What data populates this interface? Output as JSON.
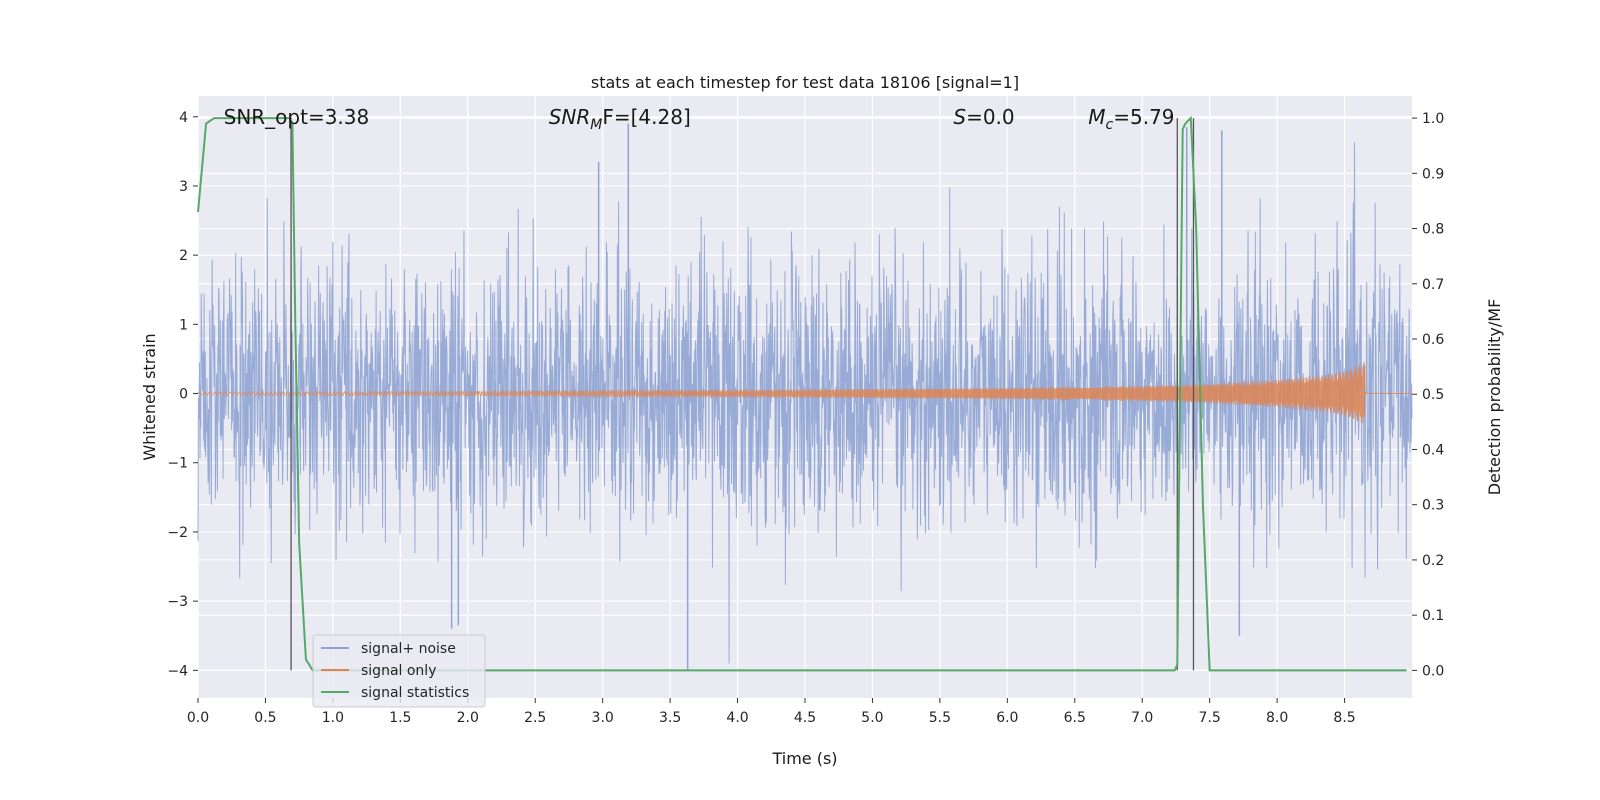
{
  "chart_data": {
    "type": "line",
    "title": "stats at each timestep for test data 18106 [signal=1]",
    "xlabel": "Time (s)",
    "ylabel": "Whitened strain",
    "y2label": "Detection probability/MF",
    "xlim": [
      0.0,
      9.0
    ],
    "ylim": [
      -4.4,
      4.3
    ],
    "y2lim": [
      -0.05,
      1.04
    ],
    "xticks": [
      0.0,
      0.5,
      1.0,
      1.5,
      2.0,
      2.5,
      3.0,
      3.5,
      4.0,
      4.5,
      5.0,
      5.5,
      6.0,
      6.5,
      7.0,
      7.5,
      8.0,
      8.5
    ],
    "xtick_labels": [
      "0.0",
      "0.5",
      "1.0",
      "1.5",
      "2.0",
      "2.5",
      "3.0",
      "3.5",
      "4.0",
      "4.5",
      "5.0",
      "5.5",
      "6.0",
      "6.5",
      "7.0",
      "7.5",
      "8.0",
      "8.5"
    ],
    "yticks": [
      4,
      3,
      2,
      1,
      0,
      -1,
      -2,
      -3,
      -4
    ],
    "ytick_labels": [
      "4",
      "3",
      "2",
      "1",
      "0",
      "−1",
      "−2",
      "−3",
      "−4"
    ],
    "y2ticks": [
      1.0,
      0.9,
      0.8,
      0.7,
      0.6,
      0.5,
      0.4,
      0.3,
      0.2,
      0.1,
      0.0
    ],
    "y2tick_labels": [
      "1.0",
      "0.9",
      "0.8",
      "0.7",
      "0.6",
      "0.5",
      "0.4",
      "0.3",
      "0.2",
      "0.1",
      "0.0"
    ],
    "annotations": [
      {
        "id": "snr-opt",
        "text": "SNR_opt=3.38",
        "x": 0.19,
        "y": 4.0
      },
      {
        "id": "snr-mf",
        "text_main": "SNR",
        "text_sub": "M",
        "text_rest": "F=[4.28]",
        "x": 2.6,
        "y": 4.0
      },
      {
        "id": "s-stat",
        "text_main": "S",
        "text_rest": "=0.0",
        "x": 5.6,
        "y": 4.0
      },
      {
        "id": "mc",
        "text_main": "M",
        "text_sub": "c",
        "text_rest": "=5.79",
        "x": 6.6,
        "y": 4.0
      }
    ],
    "vertical_lines": [
      0.69,
      7.26,
      7.38
    ],
    "legend": {
      "position": "lower-left",
      "entries": [
        {
          "label": "signal+ noise",
          "color": "#8fa4d3"
        },
        {
          "label": "signal only",
          "color": "#dd8452"
        },
        {
          "label": "signal statistics",
          "color": "#55a868"
        }
      ]
    },
    "series": [
      {
        "name": "signal+ noise",
        "axis": "left",
        "color": "#8fa4d3",
        "description_values": "whitened noise, roughly Gaussian with sigma 1, range about -4 to 4 across 0 to 9 s",
        "notable_peaks": [
          [
            3.19,
            3.9
          ],
          [
            2.97,
            3.35
          ],
          [
            7.33,
            3.85
          ],
          [
            7.59,
            3.8
          ],
          [
            3.63,
            -4.0
          ],
          [
            1.88,
            -3.4
          ],
          [
            1.93,
            -3.35
          ],
          [
            7.72,
            -3.5
          ]
        ]
      },
      {
        "name": "signal only",
        "axis": "left",
        "color": "#dd8452",
        "description_values": "chirp waveform, amplitude grows from ~0.02 near t=0 to ~0.45 at merger t=8.65 s, then ends",
        "envelope": [
          [
            0.0,
            0.02
          ],
          [
            2.0,
            0.03
          ],
          [
            4.0,
            0.05
          ],
          [
            6.0,
            0.08
          ],
          [
            7.0,
            0.11
          ],
          [
            7.5,
            0.14
          ],
          [
            8.0,
            0.2
          ],
          [
            8.4,
            0.28
          ],
          [
            8.55,
            0.36
          ],
          [
            8.64,
            0.45
          ]
        ],
        "end_time": 8.65
      },
      {
        "name": "signal statistics",
        "axis": "right",
        "color": "#55a868",
        "x": [
          0.0,
          0.06,
          0.12,
          0.3,
          0.5,
          0.68,
          0.7,
          0.72,
          0.75,
          0.8,
          0.85,
          7.24,
          7.26,
          7.3,
          7.32,
          7.36,
          7.4,
          7.45,
          7.5,
          8.96
        ],
        "values": [
          0.83,
          0.99,
          1.0,
          1.0,
          1.0,
          1.0,
          0.99,
          0.65,
          0.23,
          0.02,
          0.0,
          0.0,
          0.01,
          0.98,
          0.99,
          1.0,
          0.8,
          0.3,
          0.0,
          0.0
        ]
      }
    ]
  }
}
